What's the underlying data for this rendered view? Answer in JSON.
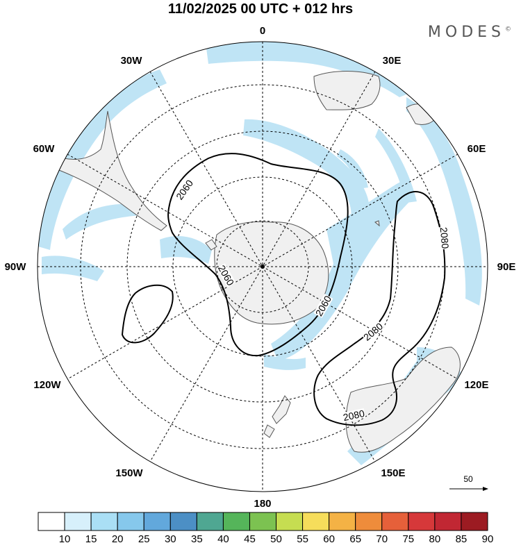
{
  "header": {
    "title": "11/02/2025  00 UTC  + 012 hrs",
    "brand": "MODES",
    "brand_mark": "©"
  },
  "map": {
    "projection": "south polar stereographic",
    "longitude_labels": [
      "0",
      "30E",
      "60E",
      "90E",
      "120E",
      "150E",
      "180",
      "150W",
      "120W",
      "90W",
      "60W",
      "30W"
    ],
    "contour_labels": [
      "2060",
      "2060",
      "2060",
      "2080",
      "2080",
      "2080",
      "2080"
    ],
    "colors": {
      "jet_fill": "#bfe4f5",
      "land": "#f0f0f0",
      "coast": "#555555",
      "contour": "#000000"
    }
  },
  "vector_legend": {
    "value": "50"
  },
  "colorbar": {
    "ticks": [
      "10",
      "15",
      "20",
      "25",
      "30",
      "35",
      "40",
      "45",
      "50",
      "55",
      "60",
      "65",
      "70",
      "75",
      "80",
      "85",
      "90"
    ],
    "colors": [
      "#ffffff",
      "#d7f0fb",
      "#aadff5",
      "#86c8ec",
      "#62a8dc",
      "#4c8fc5",
      "#4fa792",
      "#55b55a",
      "#7cc251",
      "#c6dd51",
      "#f6dd5b",
      "#f4b245",
      "#ee8c3b",
      "#e6603a",
      "#d6383a",
      "#c12733",
      "#9c1b22"
    ]
  }
}
